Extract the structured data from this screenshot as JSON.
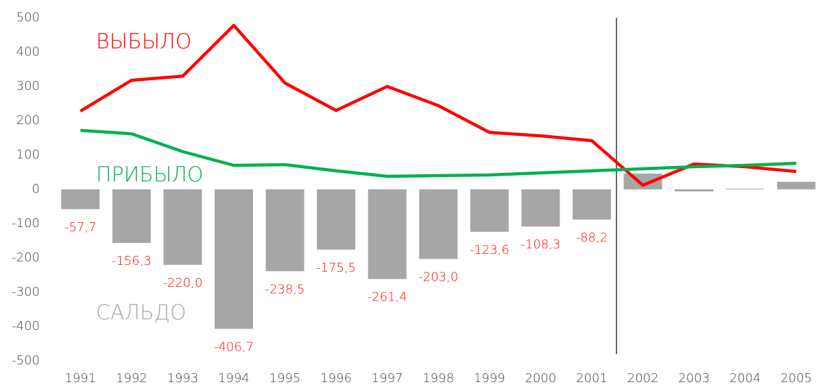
{
  "chart_data": {
    "type": "bar",
    "categories": [
      "1991",
      "1992",
      "1993",
      "1994",
      "1995",
      "1996",
      "1997",
      "1998",
      "1999",
      "2000",
      "2001",
      "2002",
      "2003",
      "2004",
      "2005"
    ],
    "series": [
      {
        "name": "САЛЬДО",
        "type": "bar",
        "color": "#a6a6a6",
        "label_color": "#ff0000",
        "values": [
          -57.7,
          -156.3,
          -220.0,
          -406.7,
          -238.5,
          -175.5,
          -261.4,
          -203.0,
          -123.6,
          -108.3,
          -88.2,
          46,
          -6,
          2,
          22
        ],
        "value_labels": [
          "-57,7",
          "-156,3",
          "-220,0",
          "-406,7",
          "-238,5",
          "-175,5",
          "-261,4",
          "-203,0",
          "-123,6",
          "-108,3",
          "-88,2",
          null,
          null,
          null,
          null
        ]
      },
      {
        "name": "ВЫБЫЛО",
        "type": "line",
        "color": "#ff0000",
        "values": [
          228,
          318,
          330,
          478,
          310,
          230,
          300,
          244,
          166,
          156,
          142,
          12,
          74,
          66,
          52
        ]
      },
      {
        "name": "ПРИБЫЛО",
        "type": "line",
        "color": "#00b050",
        "values": [
          172,
          162,
          110,
          70,
          72,
          54,
          38,
          40,
          42,
          48,
          54,
          60,
          66,
          70,
          76
        ]
      }
    ],
    "ylim": [
      -500,
      500
    ],
    "yticks": [
      -500,
      -400,
      -300,
      -200,
      -100,
      0,
      100,
      200,
      300,
      400,
      500
    ]
  }
}
